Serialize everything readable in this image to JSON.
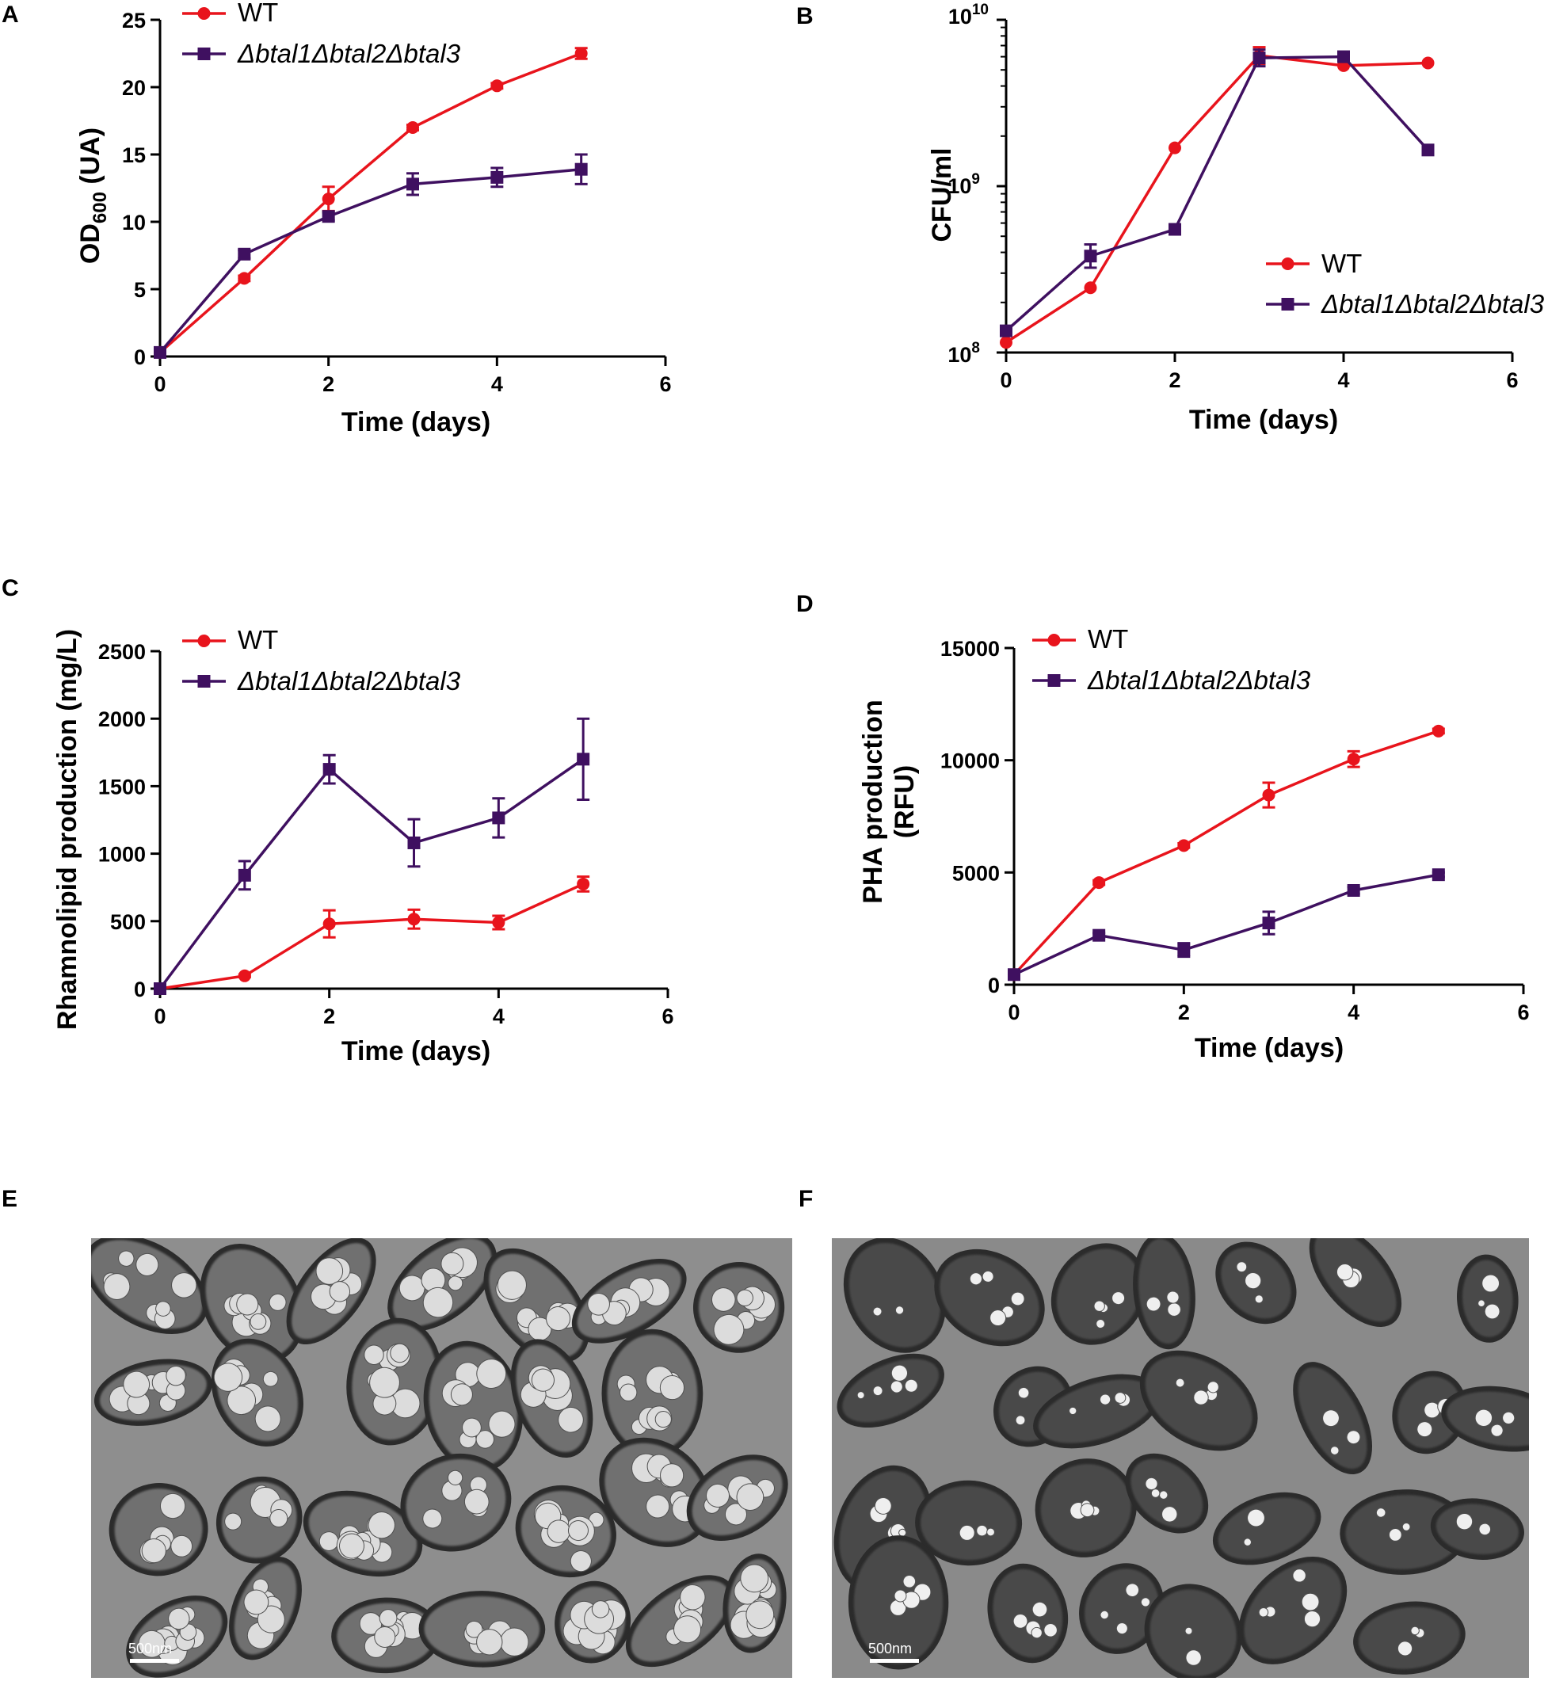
{
  "colors": {
    "wt": "#e8141c",
    "mutant": "#3f1060",
    "axis": "#000000"
  },
  "chart_data": [
    {
      "panel": "A",
      "type": "line",
      "xlabel": "Time (days)",
      "ylabel_main": "OD",
      "ylabel_sub": "600",
      "ylabel_tail": " (UA)",
      "xlim": [
        0,
        6
      ],
      "ylim": [
        0,
        25
      ],
      "yscale": "linear",
      "xticks": [
        0,
        2,
        4,
        6
      ],
      "yticks": [
        0,
        5,
        10,
        15,
        20,
        25
      ],
      "legend_position": "top-left",
      "series": [
        {
          "name": "WT",
          "marker": "circle",
          "color_key": "wt",
          "x": [
            0,
            1,
            2,
            3,
            4,
            5
          ],
          "y": [
            0.3,
            5.8,
            11.7,
            17.0,
            20.1,
            22.5
          ],
          "err": [
            0,
            0.2,
            0.9,
            0.2,
            0.2,
            0.4
          ]
        },
        {
          "name": "Δbtal1Δbtal2Δbtal3",
          "marker": "square",
          "color_key": "mutant",
          "x": [
            0,
            1,
            2,
            3,
            4,
            5
          ],
          "y": [
            0.3,
            7.6,
            10.4,
            12.8,
            13.3,
            13.9
          ],
          "err": [
            0,
            0.3,
            0.3,
            0.8,
            0.7,
            1.1
          ]
        }
      ]
    },
    {
      "panel": "B",
      "type": "line",
      "xlabel": "Time (days)",
      "ylabel": "CFU/ml",
      "xlim": [
        0,
        6
      ],
      "ylim": [
        100000000,
        10000000000
      ],
      "yscale": "log",
      "xticks": [
        0,
        2,
        4,
        6
      ],
      "yticks": [
        {
          "base": "10",
          "exp": "8",
          "value": 100000000
        },
        {
          "base": "10",
          "exp": "9",
          "value": 1000000000
        },
        {
          "base": "10",
          "exp": "10",
          "value": 10000000000
        }
      ],
      "legend_position": "middle-right",
      "series": [
        {
          "name": "WT",
          "marker": "circle",
          "color_key": "wt",
          "x": [
            0,
            1,
            2,
            3,
            4,
            5
          ],
          "y": [
            115000000,
            245000000,
            1700000000,
            6100000000,
            5300000000,
            5500000000
          ],
          "err_log": [
            0,
            0,
            0,
            0.05,
            0,
            0
          ]
        },
        {
          "name": "Δbtal1Δbtal2Δbtal3",
          "marker": "square",
          "color_key": "mutant",
          "x": [
            0,
            1,
            2,
            3,
            4,
            5
          ],
          "y": [
            135000000,
            380000000,
            550000000,
            5900000000,
            6000000000,
            1650000000
          ],
          "err_log": [
            0,
            0.07,
            0,
            0.05,
            0,
            0
          ]
        }
      ]
    },
    {
      "panel": "C",
      "type": "line",
      "xlabel": "Time (days)",
      "ylabel": "Rhamnolipid production (mg/L)",
      "xlim": [
        0,
        6
      ],
      "ylim": [
        0,
        2500
      ],
      "yscale": "linear",
      "xticks": [
        0,
        2,
        4,
        6
      ],
      "yticks": [
        0,
        500,
        1000,
        1500,
        2000,
        2500
      ],
      "legend_position": "top-left",
      "series": [
        {
          "name": "WT",
          "marker": "circle",
          "color_key": "wt",
          "x": [
            0,
            1,
            2,
            3,
            4,
            5
          ],
          "y": [
            0,
            95,
            480,
            515,
            490,
            775
          ],
          "err": [
            0,
            10,
            100,
            70,
            50,
            55
          ]
        },
        {
          "name": "Δbtal1Δbtal2Δbtal3",
          "marker": "square",
          "color_key": "mutant",
          "x": [
            0,
            1,
            2,
            3,
            4,
            5
          ],
          "y": [
            0,
            840,
            1625,
            1080,
            1265,
            1700
          ],
          "err": [
            0,
            105,
            105,
            175,
            145,
            300
          ]
        }
      ]
    },
    {
      "panel": "D",
      "type": "line",
      "xlabel": "Time (days)",
      "ylabel_line1": "PHA production",
      "ylabel_line2": "(RFU)",
      "xlim": [
        0,
        6
      ],
      "ylim": [
        0,
        15000
      ],
      "yscale": "linear",
      "xticks": [
        0,
        2,
        4,
        6
      ],
      "yticks": [
        0,
        5000,
        10000,
        15000
      ],
      "legend_position": "top-left",
      "series": [
        {
          "name": "WT",
          "marker": "circle",
          "color_key": "wt",
          "x": [
            0,
            1,
            2,
            3,
            4,
            5
          ],
          "y": [
            450,
            4550,
            6200,
            8450,
            10050,
            11300
          ],
          "err": [
            0,
            100,
            100,
            550,
            350,
            100
          ]
        },
        {
          "name": "Δbtal1Δbtal2Δbtal3",
          "marker": "square",
          "color_key": "mutant",
          "x": [
            0,
            1,
            2,
            3,
            4,
            5
          ],
          "y": [
            450,
            2200,
            1550,
            2750,
            4200,
            4900
          ],
          "err": [
            0,
            100,
            300,
            500,
            150,
            100
          ]
        }
      ]
    }
  ],
  "micrographs": [
    {
      "panel": "E",
      "scale_label": "500nm"
    },
    {
      "panel": "F",
      "scale_label": "500nm"
    }
  ]
}
